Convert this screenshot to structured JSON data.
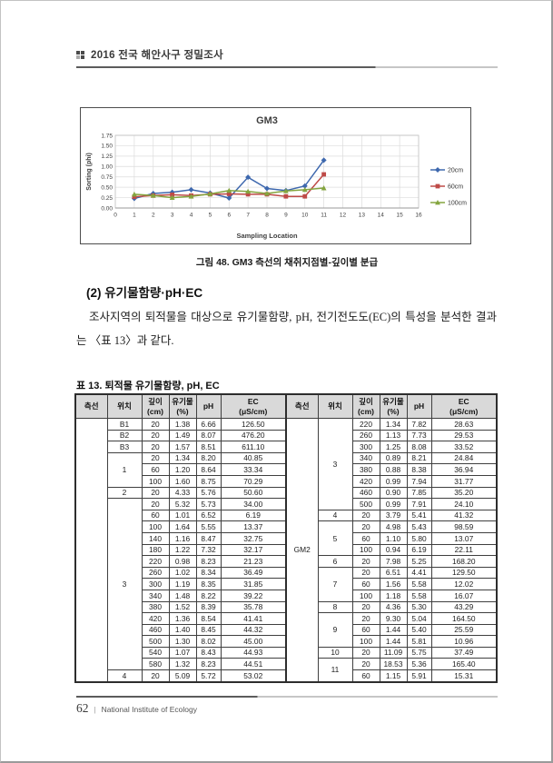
{
  "page": {
    "header_title": "2016 전국 해안사구 정밀조사",
    "footer_page_number": "62",
    "footer_separator": "|",
    "footer_institution": "National Institute of Ecology"
  },
  "figure": {
    "caption": "그림 48. GM3 측선의 채취지점별-깊이별 분급"
  },
  "chart_data": {
    "type": "line",
    "title": "GM3",
    "xlabel": "Sampling Location",
    "ylabel": "Sorting (phi)",
    "xlim": [
      0,
      16
    ],
    "ylim": [
      0,
      1.75
    ],
    "xticks": [
      0,
      1,
      2,
      3,
      4,
      5,
      6,
      7,
      8,
      9,
      10,
      11,
      12,
      13,
      14,
      15,
      16
    ],
    "yticks": [
      0.0,
      0.25,
      0.5,
      0.75,
      1.0,
      1.25,
      1.5,
      1.75
    ],
    "grid": true,
    "legend_position": "right",
    "x": [
      1,
      2,
      3,
      4,
      5,
      6,
      7,
      8,
      9,
      10,
      11
    ],
    "series": [
      {
        "name": "20cm",
        "color": "#3e68ae",
        "marker": "diamond",
        "values": [
          0.23,
          0.35,
          0.38,
          0.44,
          0.36,
          0.24,
          0.74,
          0.47,
          0.42,
          0.53,
          1.15
        ]
      },
      {
        "name": "60cm",
        "color": "#be4a47",
        "marker": "square",
        "values": [
          0.27,
          0.3,
          0.32,
          0.3,
          0.33,
          0.34,
          0.33,
          0.33,
          0.28,
          0.28,
          0.81
        ]
      },
      {
        "name": "100cm",
        "color": "#84a53f",
        "marker": "triangle",
        "values": [
          0.33,
          0.3,
          0.25,
          0.28,
          0.34,
          0.42,
          0.4,
          0.35,
          0.41,
          0.44,
          0.48
        ]
      }
    ]
  },
  "section": {
    "heading": "(2) 유기물함량·pH·EC",
    "paragraph": "조사지역의 퇴적물을 대상으로 유기물함량, pH, 전기전도도(EC)의 특성을 분석한 결과는 〈표 13〉과 같다."
  },
  "table": {
    "title": "표 13. 퇴적물 유기물함량, pH, EC",
    "headers": [
      {
        "l1": "측선",
        "l2": ""
      },
      {
        "l1": "위치",
        "l2": ""
      },
      {
        "l1": "깊이",
        "l2": "(cm)"
      },
      {
        "l1": "유기물",
        "l2": "(%)"
      },
      {
        "l1": "pH",
        "l2": ""
      },
      {
        "l1": "EC",
        "l2": "(μS/cm)"
      }
    ],
    "left": {
      "transect": "",
      "groups": [
        {
          "loc": "B1",
          "rows": [
            [
              "20",
              "1.38",
              "6.66",
              "126.50"
            ]
          ]
        },
        {
          "loc": "B2",
          "rows": [
            [
              "20",
              "1.49",
              "8.07",
              "476.20"
            ]
          ]
        },
        {
          "loc": "B3",
          "rows": [
            [
              "20",
              "1.57",
              "8.51",
              "611.10"
            ]
          ]
        },
        {
          "loc": "1",
          "rows": [
            [
              "20",
              "1.34",
              "8.20",
              "40.85"
            ],
            [
              "60",
              "1.20",
              "8.64",
              "33.34"
            ],
            [
              "100",
              "1.60",
              "8.75",
              "70.29"
            ]
          ]
        },
        {
          "loc": "2",
          "rows": [
            [
              "20",
              "4.33",
              "5.76",
              "50.60"
            ]
          ]
        },
        {
          "loc": "3",
          "rows": [
            [
              "20",
              "5.32",
              "5.73",
              "34.00"
            ],
            [
              "60",
              "1.01",
              "6.52",
              "6.19"
            ],
            [
              "100",
              "1.64",
              "5.55",
              "13.37"
            ],
            [
              "140",
              "1.16",
              "8.47",
              "32.75"
            ],
            [
              "180",
              "1.22",
              "7.32",
              "32.17"
            ],
            [
              "220",
              "0.98",
              "8.23",
              "21.23"
            ],
            [
              "260",
              "1.02",
              "8.34",
              "36.49"
            ],
            [
              "300",
              "1.19",
              "8.35",
              "31.85"
            ],
            [
              "340",
              "1.48",
              "8.22",
              "39.22"
            ],
            [
              "380",
              "1.52",
              "8.39",
              "35.78"
            ],
            [
              "420",
              "1.36",
              "8.54",
              "41.41"
            ],
            [
              "460",
              "1.40",
              "8.45",
              "44.32"
            ],
            [
              "500",
              "1.30",
              "8.02",
              "45.00"
            ],
            [
              "540",
              "1.07",
              "8.43",
              "44.93"
            ],
            [
              "580",
              "1.32",
              "8.23",
              "44.51"
            ]
          ]
        },
        {
          "loc": "4",
          "rows": [
            [
              "20",
              "5.09",
              "5.72",
              "53.02"
            ]
          ]
        }
      ]
    },
    "right": {
      "transect": "GM2",
      "groups": [
        {
          "loc": "3",
          "rows": [
            [
              "220",
              "1.34",
              "7.82",
              "28.63"
            ],
            [
              "260",
              "1.13",
              "7.73",
              "29.53"
            ],
            [
              "300",
              "1.25",
              "8.08",
              "33.52"
            ],
            [
              "340",
              "0.89",
              "8.21",
              "24.84"
            ],
            [
              "380",
              "0.88",
              "8.38",
              "36.94"
            ],
            [
              "420",
              "0.99",
              "7.94",
              "31.77"
            ],
            [
              "460",
              "0.90",
              "7.85",
              "35.20"
            ],
            [
              "500",
              "0.99",
              "7.91",
              "24.10"
            ]
          ]
        },
        {
          "loc": "4",
          "rows": [
            [
              "20",
              "3.79",
              "5.41",
              "41.32"
            ]
          ]
        },
        {
          "loc": "5",
          "rows": [
            [
              "20",
              "4.98",
              "5.43",
              "98.59"
            ],
            [
              "60",
              "1.10",
              "5.80",
              "13.07"
            ],
            [
              "100",
              "0.94",
              "6.19",
              "22.11"
            ]
          ]
        },
        {
          "loc": "6",
          "rows": [
            [
              "20",
              "7.98",
              "5.25",
              "168.20"
            ]
          ]
        },
        {
          "loc": "7",
          "rows": [
            [
              "20",
              "6.51",
              "4.41",
              "129.50"
            ],
            [
              "60",
              "1.56",
              "5.58",
              "12.02"
            ],
            [
              "100",
              "1.18",
              "5.58",
              "16.07"
            ]
          ]
        },
        {
          "loc": "8",
          "rows": [
            [
              "20",
              "4.36",
              "5.30",
              "43.29"
            ]
          ]
        },
        {
          "loc": "9",
          "rows": [
            [
              "20",
              "9.30",
              "5.04",
              "164.50"
            ],
            [
              "60",
              "1.44",
              "5.40",
              "25.59"
            ],
            [
              "100",
              "1.44",
              "5.81",
              "10.96"
            ]
          ]
        },
        {
          "loc": "10",
          "rows": [
            [
              "20",
              "11.09",
              "5.75",
              "37.49"
            ]
          ]
        },
        {
          "loc": "11",
          "rows": [
            [
              "20",
              "18.53",
              "5.36",
              "165.40"
            ],
            [
              "60",
              "1.15",
              "5.91",
              "15.31"
            ]
          ]
        }
      ]
    }
  }
}
